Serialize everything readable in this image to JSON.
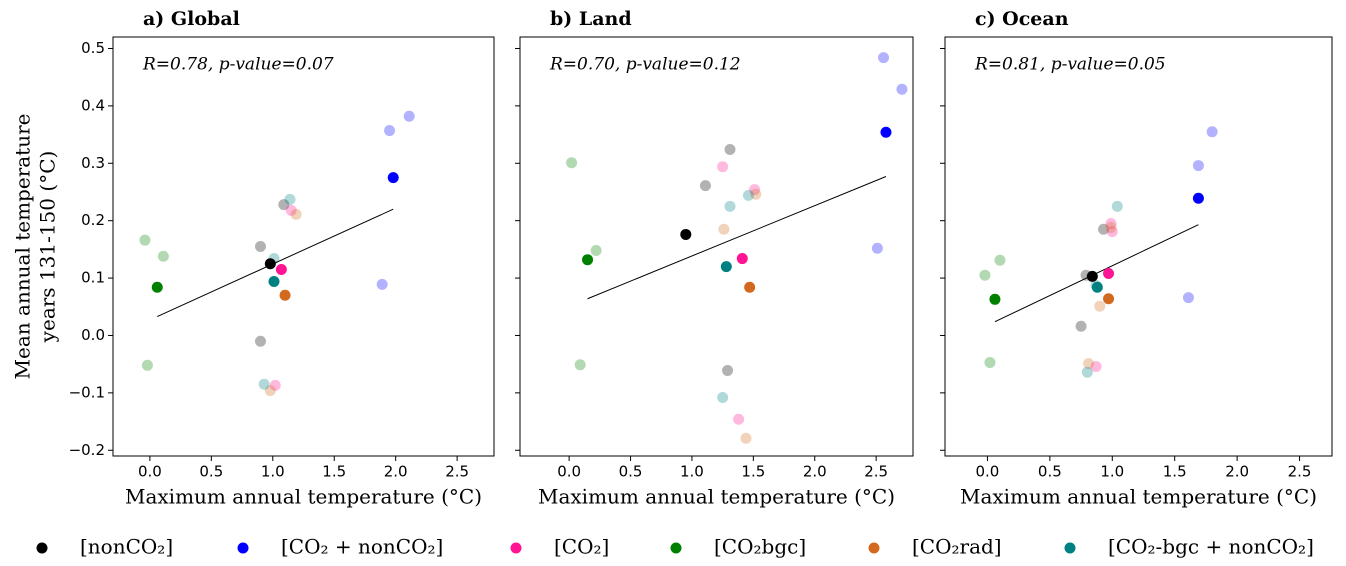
{
  "legend": [
    {
      "name": "[nonCO₂]",
      "color": "#000000"
    },
    {
      "name": "[CO₂ + nonCO₂]",
      "color": "#0000ff"
    },
    {
      "name": "[CO₂]",
      "color": "#ff1493"
    },
    {
      "name": "[CO₂bgc]",
      "color": "#008000"
    },
    {
      "name": "[CO₂rad]",
      "color": "#d2691e"
    },
    {
      "name": "[CO₂-bgc + nonCO₂]",
      "color": "#008080"
    }
  ],
  "chart_data": [
    {
      "type": "scatter",
      "title": "a) Global",
      "annotation": "R=0.78, p-value=0.07",
      "xlabel": "Maximum annual temperature (°C)",
      "ylabel": [
        "Mean annual temperature",
        "years 131-150 (°C)"
      ],
      "xlim": [
        -0.3,
        2.8
      ],
      "ylim": [
        -0.21,
        0.52
      ],
      "xticks": [
        {
          "value": 0,
          "label": "0.0"
        },
        0.5,
        {
          "value": 1,
          "label": "1.0"
        },
        1.5,
        {
          "value": 2,
          "label": "2.0"
        },
        2.5
      ],
      "yticks": [
        {
          "value": -0.2,
          "label": "−0.2"
        },
        {
          "value": -0.1,
          "label": "−0.1"
        },
        {
          "value": 0,
          "label": "0.0"
        },
        0.1,
        0.2,
        0.3,
        0.4,
        0.5
      ],
      "series": [
        {
          "x": 0.98,
          "y": 0.125,
          "member_x": [
            1.09,
            0.9,
            0.9
          ],
          "member_y": [
            0.228,
            0.155,
            -0.01
          ]
        },
        {
          "x": 1.98,
          "y": 0.275,
          "member_x": [
            1.95,
            2.11,
            1.89
          ],
          "member_y": [
            0.357,
            0.382,
            0.089
          ]
        },
        {
          "x": 1.07,
          "y": 0.115,
          "member_x": [
            1.15,
            1.02
          ],
          "member_y": [
            0.218,
            -0.087
          ]
        },
        {
          "x": 0.06,
          "y": 0.084,
          "member_x": [
            -0.04,
            0.11,
            -0.02
          ],
          "member_y": [
            0.166,
            0.138,
            -0.052
          ]
        },
        {
          "x": 1.1,
          "y": 0.07,
          "member_x": [
            1.19,
            0.98
          ],
          "member_y": [
            0.211,
            -0.096
          ]
        },
        {
          "x": 1.01,
          "y": 0.094,
          "member_x": [
            1.14,
            1.01,
            0.93
          ],
          "member_y": [
            0.237,
            0.134,
            -0.085
          ]
        }
      ],
      "fit": {
        "x": [
          0.06,
          1.98
        ],
        "y": [
          0.033,
          0.22
        ]
      }
    },
    {
      "type": "scatter",
      "title": "b) Land",
      "annotation": "R=0.70, p-value=0.12",
      "xlabel": "Maximum annual temperature (°C)",
      "xlim": [
        -0.4,
        2.8
      ],
      "ylim": [
        -0.21,
        0.52
      ],
      "xticks": [
        {
          "value": 0,
          "label": "0.0"
        },
        0.5,
        {
          "value": 1,
          "label": "1.0"
        },
        1.5,
        {
          "value": 2,
          "label": "2.0"
        },
        2.5
      ],
      "yticks": [
        -0.2,
        -0.1,
        0,
        0.1,
        0.2,
        0.3,
        0.4,
        0.5
      ],
      "series": [
        {
          "x": 0.95,
          "y": 0.176,
          "member_x": [
            1.31,
            1.11,
            1.29
          ],
          "member_y": [
            0.324,
            0.261,
            -0.061
          ]
        },
        {
          "x": 2.58,
          "y": 0.354,
          "member_x": [
            2.56,
            2.71,
            2.51
          ],
          "member_y": [
            0.484,
            0.429,
            0.152
          ]
        },
        {
          "x": 1.41,
          "y": 0.134,
          "member_x": [
            1.25,
            1.51,
            1.38
          ],
          "member_y": [
            0.294,
            0.254,
            -0.146
          ]
        },
        {
          "x": 0.15,
          "y": 0.132,
          "member_x": [
            0.02,
            0.22,
            0.09
          ],
          "member_y": [
            0.301,
            0.148,
            -0.051
          ]
        },
        {
          "x": 1.47,
          "y": 0.084,
          "member_x": [
            1.52,
            1.26,
            1.44
          ],
          "member_y": [
            0.246,
            0.185,
            -0.179
          ]
        },
        {
          "x": 1.28,
          "y": 0.12,
          "member_x": [
            1.46,
            1.31,
            1.25
          ],
          "member_y": [
            0.244,
            0.225,
            -0.108
          ]
        }
      ],
      "fit": {
        "x": [
          0.15,
          2.58
        ],
        "y": [
          0.064,
          0.277
        ]
      }
    },
    {
      "type": "scatter",
      "title": "c) Ocean",
      "annotation": "R=0.81, p-value=0.05",
      "xlabel": "Maximum annual temperature (°C)",
      "xlim": [
        -0.34,
        2.76
      ],
      "ylim": [
        -0.21,
        0.52
      ],
      "xticks": [
        {
          "value": 0,
          "label": "0.0"
        },
        0.5,
        {
          "value": 1,
          "label": "1.0"
        },
        1.5,
        {
          "value": 2,
          "label": "2.0"
        },
        2.5
      ],
      "yticks": [
        -0.2,
        -0.1,
        0,
        0.1,
        0.2,
        0.3,
        0.4,
        0.5
      ],
      "series": [
        {
          "x": 0.84,
          "y": 0.103,
          "member_x": [
            0.93,
            0.79,
            0.75
          ],
          "member_y": [
            0.185,
            0.105,
            0.016
          ]
        },
        {
          "x": 1.69,
          "y": 0.239,
          "member_x": [
            1.8,
            1.69,
            1.61
          ],
          "member_y": [
            0.355,
            0.296,
            0.066
          ]
        },
        {
          "x": 0.97,
          "y": 0.108,
          "member_x": [
            0.99,
            1.0,
            0.87
          ],
          "member_y": [
            0.195,
            0.181,
            -0.054
          ]
        },
        {
          "x": 0.06,
          "y": 0.063,
          "member_x": [
            -0.02,
            0.1,
            0.02
          ],
          "member_y": [
            0.105,
            0.131,
            -0.047
          ]
        },
        {
          "x": 0.97,
          "y": 0.064,
          "member_x": [
            0.99,
            0.9,
            0.81
          ],
          "member_y": [
            0.188,
            0.051,
            -0.049
          ]
        },
        {
          "x": 0.88,
          "y": 0.084,
          "member_x": [
            1.04,
            0.87,
            0.8
          ],
          "member_y": [
            0.225,
            0.087,
            -0.064
          ]
        }
      ],
      "fit": {
        "x": [
          0.06,
          1.69
        ],
        "y": [
          0.024,
          0.193
        ]
      }
    }
  ]
}
